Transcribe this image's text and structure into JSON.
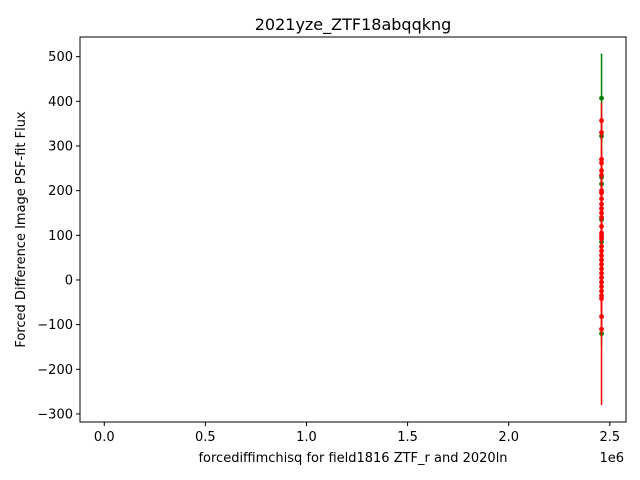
{
  "chart_data": {
    "type": "scatter",
    "title": "2021yze_ZTF18abqqkng",
    "xlabel": "forcediffimchisq for field1816 ZTF_r and 2020ln",
    "ylabel": "Forced Difference Image PSF-fit Flux",
    "x_offset_label": "1e6",
    "xlim": [
      -120000,
      2580000
    ],
    "ylim": [
      -318,
      544
    ],
    "x_ticks": [
      0,
      500000,
      1000000,
      1500000,
      2000000,
      2500000
    ],
    "x_tick_labels": [
      "0.0",
      "0.5",
      "1.0",
      "1.5",
      "2.0",
      "2.5"
    ],
    "y_ticks": [
      -300,
      -200,
      -100,
      0,
      100,
      200,
      300,
      400,
      500
    ],
    "y_tick_labels": [
      "−300",
      "−200",
      "−100",
      "0",
      "100",
      "200",
      "300",
      "400",
      "500"
    ],
    "grid": false,
    "series": [
      {
        "color": "#008000",
        "points": [
          {
            "x": 2459000,
            "y": 407,
            "err": 100
          },
          {
            "x": 2459000,
            "y": 322,
            "err": 40
          },
          {
            "x": 2459000,
            "y": 230,
            "err": 30
          },
          {
            "x": 2459000,
            "y": 215,
            "err": 25
          },
          {
            "x": 2459000,
            "y": 135,
            "err": 25
          },
          {
            "x": 2459000,
            "y": 85,
            "err": 20
          },
          {
            "x": 2459000,
            "y": -120,
            "err": 30
          }
        ]
      },
      {
        "color": "#ff0000",
        "points": [
          {
            "x": 2459000,
            "y": 357,
            "err": 40
          },
          {
            "x": 2459000,
            "y": 330,
            "err": 30
          },
          {
            "x": 2459000,
            "y": 270,
            "err": 30
          },
          {
            "x": 2459000,
            "y": 262,
            "err": 30
          },
          {
            "x": 2459000,
            "y": 245,
            "err": 30
          },
          {
            "x": 2459000,
            "y": 235,
            "err": 30
          },
          {
            "x": 2459000,
            "y": 200,
            "err": 30
          },
          {
            "x": 2459000,
            "y": 195,
            "err": 30
          },
          {
            "x": 2459000,
            "y": 182,
            "err": 30
          },
          {
            "x": 2459000,
            "y": 170,
            "err": 30
          },
          {
            "x": 2459000,
            "y": 160,
            "err": 30
          },
          {
            "x": 2459000,
            "y": 150,
            "err": 30
          },
          {
            "x": 2459000,
            "y": 140,
            "err": 30
          },
          {
            "x": 2459000,
            "y": 120,
            "err": 30
          },
          {
            "x": 2459000,
            "y": 105,
            "err": 30
          },
          {
            "x": 2459000,
            "y": 98,
            "err": 30
          },
          {
            "x": 2459000,
            "y": 92,
            "err": 30
          },
          {
            "x": 2459000,
            "y": 75,
            "err": 30
          },
          {
            "x": 2459000,
            "y": 65,
            "err": 30
          },
          {
            "x": 2459000,
            "y": 55,
            "err": 30
          },
          {
            "x": 2459000,
            "y": 45,
            "err": 30
          },
          {
            "x": 2459000,
            "y": 35,
            "err": 30
          },
          {
            "x": 2459000,
            "y": 25,
            "err": 30
          },
          {
            "x": 2459000,
            "y": 15,
            "err": 30
          },
          {
            "x": 2459000,
            "y": 5,
            "err": 30
          },
          {
            "x": 2459000,
            "y": -5,
            "err": 30
          },
          {
            "x": 2459000,
            "y": -15,
            "err": 30
          },
          {
            "x": 2459000,
            "y": -25,
            "err": 30
          },
          {
            "x": 2459000,
            "y": -35,
            "err": 30
          },
          {
            "x": 2459000,
            "y": -42,
            "err": 30
          },
          {
            "x": 2459000,
            "y": -82,
            "err": 40
          },
          {
            "x": 2459000,
            "y": -110,
            "err": 170
          }
        ]
      }
    ]
  }
}
